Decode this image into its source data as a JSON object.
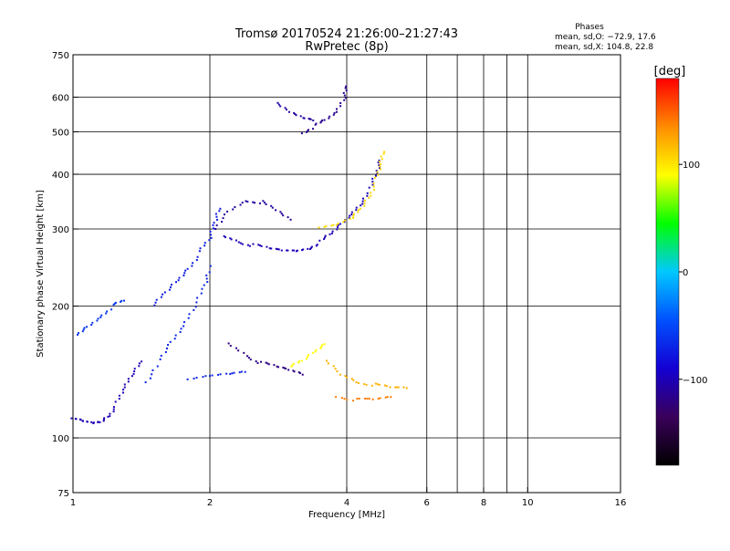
{
  "title": "Tromsø 20170524 21:26:00–21:27:43",
  "subtitle": "RwPretec (8p)",
  "stats": {
    "heading": "Phases",
    "line1": "mean, sd,O: −72.9, 17.6",
    "line2": "mean, sd,X: 104.8, 22.8"
  },
  "colorbar": {
    "unit": "[deg]",
    "ticks": [
      {
        "value": 100,
        "label": "100"
      },
      {
        "value": 0,
        "label": "0"
      },
      {
        "value": -100,
        "label": "−100"
      }
    ],
    "range": [
      -180,
      180
    ],
    "colormap": [
      "#000000",
      "#3a005a",
      "#1400d2",
      "#0050ff",
      "#00c8ff",
      "#00ff00",
      "#ffff00",
      "#ff8c00",
      "#ff0000"
    ]
  },
  "chart_data": {
    "type": "scatter",
    "title": "Tromsø 20170524 21:26:00–21:27:43",
    "subtitle": "RwPretec (8p)",
    "xlabel": "Frequency [MHz]",
    "ylabel": "Stationary phase Virtual Height [km]",
    "xscale": "log",
    "yscale": "log",
    "xlim": [
      1,
      16
    ],
    "ylim": [
      75,
      750
    ],
    "x_ticks": [
      {
        "v": 1,
        "label": "1"
      },
      {
        "v": 2,
        "label": "2"
      },
      {
        "v": 4,
        "label": "4"
      },
      {
        "v": 6,
        "label": "6"
      },
      {
        "v": 8,
        "label": "8"
      },
      {
        "v": 10,
        "label": "10"
      },
      {
        "v": 16,
        "label": "16"
      }
    ],
    "x_gridlines": [
      2,
      4,
      6,
      7,
      8,
      9,
      10
    ],
    "y_ticks": [
      {
        "v": 75,
        "label": "75"
      },
      {
        "v": 100,
        "label": "100"
      },
      {
        "v": 200,
        "label": "200"
      },
      {
        "v": 300,
        "label": "300"
      },
      {
        "v": 400,
        "label": "400"
      },
      {
        "v": 500,
        "label": "500"
      },
      {
        "v": 600,
        "label": "600"
      },
      {
        "v": 750,
        "label": "750"
      }
    ],
    "y_gridlines": [
      100,
      200,
      300,
      400,
      500,
      600
    ],
    "grid": true,
    "traces": [
      {
        "phase": -100,
        "points": [
          [
            1.0,
            110
          ],
          [
            1.05,
            109
          ],
          [
            1.1,
            108
          ],
          [
            1.15,
            109
          ],
          [
            1.2,
            113
          ],
          [
            1.25,
            120
          ],
          [
            1.3,
            130
          ],
          [
            1.35,
            140
          ],
          [
            1.42,
            150
          ]
        ]
      },
      {
        "phase": -60,
        "points": [
          [
            1.02,
            172
          ],
          [
            1.08,
            180
          ],
          [
            1.15,
            190
          ],
          [
            1.22,
            200
          ],
          [
            1.3,
            205
          ]
        ]
      },
      {
        "phase": -70,
        "points": [
          [
            1.45,
            135
          ],
          [
            1.55,
            150
          ],
          [
            1.65,
            165
          ],
          [
            1.75,
            180
          ],
          [
            1.85,
            200
          ],
          [
            1.95,
            225
          ],
          [
            2.0,
            245
          ]
        ]
      },
      {
        "phase": -75,
        "points": [
          [
            1.5,
            200
          ],
          [
            1.6,
            215
          ],
          [
            1.7,
            230
          ],
          [
            1.8,
            245
          ],
          [
            1.9,
            265
          ],
          [
            2.0,
            285
          ],
          [
            2.05,
            310
          ],
          [
            2.1,
            335
          ]
        ]
      },
      {
        "phase": -100,
        "points": [
          [
            2.15,
            290
          ],
          [
            2.3,
            282
          ],
          [
            2.5,
            275
          ],
          [
            2.7,
            270
          ],
          [
            2.9,
            268
          ],
          [
            3.1,
            268
          ],
          [
            3.3,
            272
          ],
          [
            3.5,
            280
          ],
          [
            3.7,
            292
          ],
          [
            3.9,
            308
          ],
          [
            4.1,
            325
          ],
          [
            4.3,
            345
          ],
          [
            4.5,
            370
          ],
          [
            4.65,
            400
          ],
          [
            4.75,
            430
          ]
        ]
      },
      {
        "phase": 105,
        "points": [
          [
            3.5,
            300
          ],
          [
            3.8,
            305
          ],
          [
            4.1,
            318
          ],
          [
            4.3,
            335
          ],
          [
            4.5,
            360
          ],
          [
            4.65,
            390
          ],
          [
            4.75,
            420
          ],
          [
            4.8,
            450
          ]
        ]
      },
      {
        "phase": -110,
        "points": [
          [
            2.05,
            300
          ],
          [
            2.2,
            330
          ],
          [
            2.4,
            350
          ],
          [
            2.6,
            345
          ],
          [
            2.8,
            330
          ],
          [
            3.0,
            315
          ]
        ]
      },
      {
        "phase": -115,
        "points": [
          [
            3.2,
            500
          ],
          [
            3.4,
            515
          ],
          [
            3.6,
            530
          ],
          [
            3.8,
            555
          ],
          [
            3.95,
            600
          ],
          [
            4.0,
            640
          ]
        ]
      },
      {
        "phase": -110,
        "points": [
          [
            2.8,
            580
          ],
          [
            3.0,
            555
          ],
          [
            3.2,
            540
          ],
          [
            3.4,
            535
          ]
        ]
      },
      {
        "phase": -120,
        "points": [
          [
            2.2,
            165
          ],
          [
            2.4,
            155
          ],
          [
            2.6,
            148
          ],
          [
            2.8,
            145
          ],
          [
            3.0,
            143
          ],
          [
            3.2,
            140
          ]
        ]
      },
      {
        "phase": -70,
        "points": [
          [
            1.8,
            135
          ],
          [
            2.0,
            138
          ],
          [
            2.2,
            140
          ],
          [
            2.4,
            142
          ]
        ]
      },
      {
        "phase": 120,
        "points": [
          [
            3.6,
            150
          ],
          [
            3.9,
            140
          ],
          [
            4.2,
            135
          ],
          [
            4.6,
            132
          ],
          [
            5.0,
            130
          ],
          [
            5.4,
            130
          ]
        ]
      },
      {
        "phase": 140,
        "points": [
          [
            3.8,
            125
          ],
          [
            4.2,
            122
          ],
          [
            4.6,
            122
          ],
          [
            5.0,
            124
          ]
        ]
      },
      {
        "phase": 90,
        "points": [
          [
            3.0,
            145
          ],
          [
            3.2,
            150
          ],
          [
            3.4,
            158
          ],
          [
            3.6,
            165
          ]
        ]
      }
    ]
  }
}
